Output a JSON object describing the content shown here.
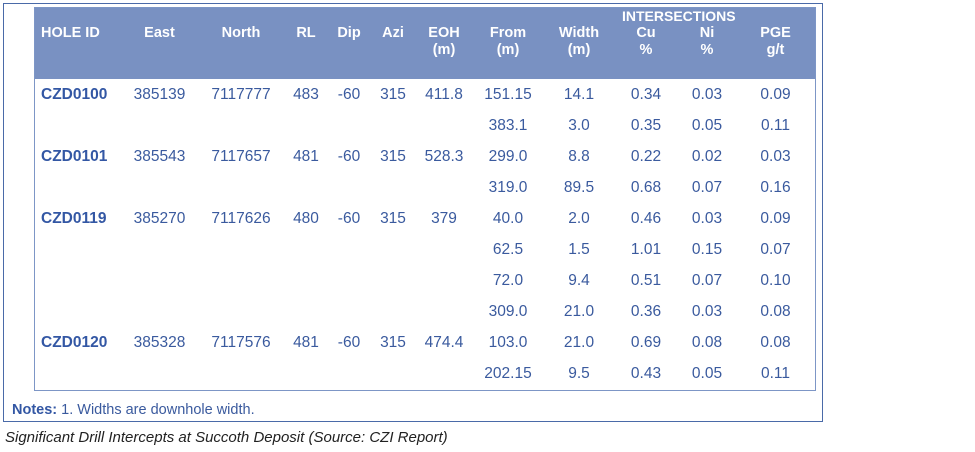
{
  "table": {
    "group_header": "INTERSECTIONS",
    "columns": {
      "hole_id": "HOLE ID",
      "east": "East",
      "north": "North",
      "rl": "RL",
      "dip": "Dip",
      "azi": "Azi",
      "eoh": "EOH",
      "eoh_unit": "(m)",
      "from": "From",
      "from_unit": "(m)",
      "width": "Width",
      "width_unit": "(m)",
      "cu": "Cu",
      "cu_unit": "%",
      "ni": "Ni",
      "ni_unit": "%",
      "pge": "PGE",
      "pge_unit": "g/t"
    },
    "rows": [
      {
        "hole_id": "CZD0100",
        "east": "385139",
        "north": "7117777",
        "rl": "483",
        "dip": "-60",
        "azi": "315",
        "eoh": "411.8",
        "from": "151.15",
        "width": "14.1",
        "cu": "0.34",
        "ni": "0.03",
        "pge": "0.09"
      },
      {
        "hole_id": "",
        "east": "",
        "north": "",
        "rl": "",
        "dip": "",
        "azi": "",
        "eoh": "",
        "from": "383.1",
        "width": "3.0",
        "cu": "0.35",
        "ni": "0.05",
        "pge": "0.11"
      },
      {
        "hole_id": "CZD0101",
        "east": "385543",
        "north": "7117657",
        "rl": "481",
        "dip": "-60",
        "azi": "315",
        "eoh": "528.3",
        "from": "299.0",
        "width": "8.8",
        "cu": "0.22",
        "ni": "0.02",
        "pge": "0.03"
      },
      {
        "hole_id": "",
        "east": "",
        "north": "",
        "rl": "",
        "dip": "",
        "azi": "",
        "eoh": "",
        "from": "319.0",
        "width": "89.5",
        "cu": "0.68",
        "ni": "0.07",
        "pge": "0.16"
      },
      {
        "hole_id": "CZD0119",
        "east": "385270",
        "north": "7117626",
        "rl": "480",
        "dip": "-60",
        "azi": "315",
        "eoh": "379",
        "from": "40.0",
        "width": "2.0",
        "cu": "0.46",
        "ni": "0.03",
        "pge": "0.09"
      },
      {
        "hole_id": "",
        "east": "",
        "north": "",
        "rl": "",
        "dip": "",
        "azi": "",
        "eoh": "",
        "from": "62.5",
        "width": "1.5",
        "cu": "1.01",
        "ni": "0.15",
        "pge": "0.07"
      },
      {
        "hole_id": "",
        "east": "",
        "north": "",
        "rl": "",
        "dip": "",
        "azi": "",
        "eoh": "",
        "from": "72.0",
        "width": "9.4",
        "cu": "0.51",
        "ni": "0.07",
        "pge": "0.10"
      },
      {
        "hole_id": "",
        "east": "",
        "north": "",
        "rl": "",
        "dip": "",
        "azi": "",
        "eoh": "",
        "from": "309.0",
        "width": "21.0",
        "cu": "0.36",
        "ni": "0.03",
        "pge": "0.08"
      },
      {
        "hole_id": "CZD0120",
        "east": "385328",
        "north": "7117576",
        "rl": "481",
        "dip": "-60",
        "azi": "315",
        "eoh": "474.4",
        "from": "103.0",
        "width": "21.0",
        "cu": "0.69",
        "ni": "0.08",
        "pge": "0.08"
      },
      {
        "hole_id": "",
        "east": "",
        "north": "",
        "rl": "",
        "dip": "",
        "azi": "",
        "eoh": "",
        "from": "202.15",
        "width": "9.5",
        "cu": "0.43",
        "ni": "0.05",
        "pge": "0.11"
      }
    ]
  },
  "notes": {
    "label": "Notes:",
    "text": "1. Widths are downhole width."
  },
  "caption": "Significant Drill Intercepts at Succoth Deposit (Source: CZI Report)",
  "colors": {
    "header_bg": "#7991c2",
    "text_blue": "#3a5a9e",
    "border_blue": "#4a6aa8"
  }
}
